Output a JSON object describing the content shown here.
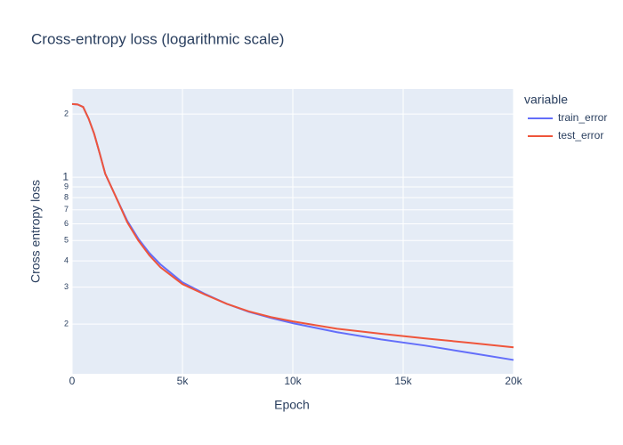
{
  "chart_data": {
    "type": "line",
    "title": "Cross-entropy loss (logarithmic scale)",
    "x_label": "Epoch",
    "y_label": "Cross entropy loss",
    "legend_title": "variable",
    "legend_position": "right",
    "log_y": true,
    "grid": true,
    "x": [
      0,
      250,
      500,
      750,
      1000,
      1250,
      1500,
      2000,
      2500,
      3000,
      3500,
      4000,
      5000,
      6000,
      7000,
      8000,
      9000,
      10000,
      12000,
      14000,
      16000,
      18000,
      20000
    ],
    "series": [
      {
        "name": "train_error",
        "color": "#636efa",
        "values": [
          2.23,
          2.22,
          2.16,
          1.9,
          1.61,
          1.3,
          1.04,
          0.8,
          0.62,
          0.51,
          0.436,
          0.385,
          0.316,
          0.279,
          0.25,
          0.229,
          0.214,
          0.202,
          0.183,
          0.169,
          0.158,
          0.146,
          0.135
        ]
      },
      {
        "name": "test_error",
        "color": "#ef553b",
        "values": [
          2.23,
          2.22,
          2.16,
          1.9,
          1.61,
          1.3,
          1.04,
          0.8,
          0.61,
          0.5,
          0.425,
          0.373,
          0.31,
          0.277,
          0.25,
          0.23,
          0.216,
          0.206,
          0.19,
          0.18,
          0.171,
          0.163,
          0.155
        ]
      }
    ],
    "xlim": [
      0,
      20000
    ],
    "xticks": [
      0,
      {
        "value": 5000,
        "label": "5k"
      },
      {
        "value": 10000,
        "label": "10k"
      },
      {
        "value": 15000,
        "label": "15k"
      },
      {
        "value": 20000,
        "label": "20k"
      }
    ],
    "ylim": [
      0.116,
      2.63
    ],
    "yticks": [
      2,
      1,
      {
        "value": 0.9,
        "label": "9"
      },
      {
        "value": 0.8,
        "label": "8"
      },
      {
        "value": 0.7,
        "label": "7"
      },
      {
        "value": 0.6,
        "label": "6"
      },
      {
        "value": 0.5,
        "label": "5"
      },
      {
        "value": 0.4,
        "label": "4"
      },
      {
        "value": 0.3,
        "label": "3"
      },
      {
        "value": 0.2,
        "label": "2"
      }
    ]
  }
}
